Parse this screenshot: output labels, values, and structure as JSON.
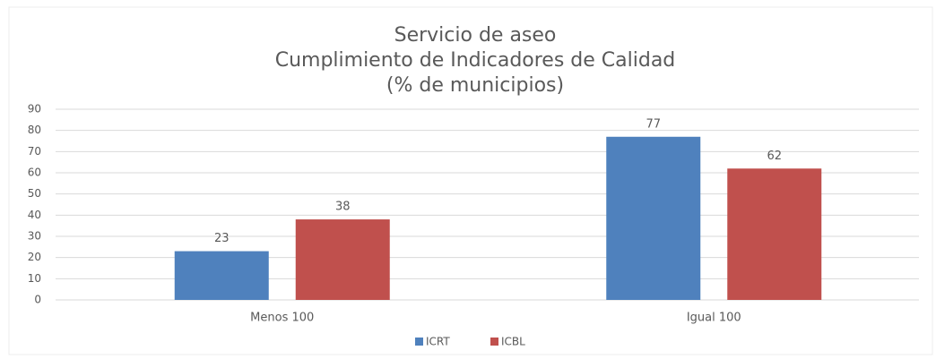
{
  "chart_data": {
    "type": "bar",
    "title": [
      "Servicio de aseo",
      "Cumplimiento de Indicadores de Calidad",
      "(%  de municipios)"
    ],
    "categories": [
      "Menos 100",
      "Igual 100"
    ],
    "series": [
      {
        "name": "ICRT",
        "color": "#4f81bd",
        "values": [
          23,
          77
        ]
      },
      {
        "name": "ICBL",
        "color": "#c0504d",
        "values": [
          38,
          62
        ]
      }
    ],
    "ylim": [
      0,
      90
    ],
    "yticks": [
      0,
      10,
      20,
      30,
      40,
      50,
      60,
      70,
      80,
      90
    ],
    "grid": true,
    "legend": "bottom"
  }
}
